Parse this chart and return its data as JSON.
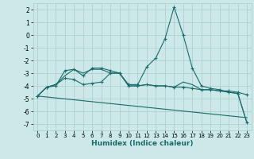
{
  "xlabel": "Humidex (Indice chaleur)",
  "background_color": "#cce8e8",
  "grid_color": "#aacccc",
  "line_color": "#1a6b6b",
  "xlim": [
    -0.5,
    23.5
  ],
  "ylim": [
    -7.5,
    2.5
  ],
  "yticks": [
    2,
    1,
    0,
    -1,
    -2,
    -3,
    -4,
    -5,
    -6,
    -7
  ],
  "xticks": [
    0,
    1,
    2,
    3,
    4,
    5,
    6,
    7,
    8,
    9,
    10,
    11,
    12,
    13,
    14,
    15,
    16,
    17,
    18,
    19,
    20,
    21,
    22,
    23
  ],
  "series": [
    {
      "x": [
        0,
        1,
        2,
        3,
        4,
        5,
        6,
        7,
        8,
        9,
        10,
        11,
        12,
        13,
        14,
        15,
        16,
        17,
        18,
        19,
        20,
        21,
        22,
        23
      ],
      "y": [
        -4.8,
        -4.1,
        -3.9,
        -3.4,
        -3.5,
        -3.9,
        -3.8,
        -3.7,
        -3.0,
        -3.0,
        -4.0,
        -4.0,
        -3.9,
        -4.0,
        -4.0,
        -4.1,
        -4.1,
        -4.2,
        -4.3,
        -4.3,
        -4.4,
        -4.4,
        -4.5,
        -4.7
      ],
      "marker": true
    },
    {
      "x": [
        0,
        1,
        2,
        3,
        4,
        5,
        6,
        7,
        8,
        9,
        10,
        11,
        12,
        13,
        14,
        15,
        16,
        17,
        18,
        19,
        20,
        21,
        22,
        23
      ],
      "y": [
        -4.8,
        -4.1,
        -4.0,
        -2.8,
        -2.7,
        -3.2,
        -2.6,
        -2.6,
        -2.8,
        -3.0,
        -3.9,
        -3.9,
        -2.5,
        -1.8,
        -0.3,
        2.2,
        0.0,
        -2.6,
        -4.0,
        -4.2,
        -4.3,
        -4.5,
        -4.6,
        -6.9
      ],
      "marker": true
    },
    {
      "x": [
        0,
        1,
        2,
        3,
        4,
        5,
        6,
        7,
        8,
        9,
        10,
        11,
        12,
        13,
        14,
        15,
        16,
        17,
        18,
        19,
        20,
        21,
        22,
        23
      ],
      "y": [
        -4.8,
        -4.1,
        -3.9,
        -3.2,
        -2.7,
        -3.0,
        -2.7,
        -2.7,
        -3.0,
        -3.0,
        -4.0,
        -4.0,
        -3.9,
        -4.0,
        -4.0,
        -4.1,
        -3.7,
        -3.9,
        -4.3,
        -4.3,
        -4.4,
        -4.5,
        -4.6,
        -6.9
      ],
      "marker": false
    },
    {
      "x": [
        0,
        23
      ],
      "y": [
        -4.8,
        -6.5
      ],
      "marker": false
    }
  ]
}
